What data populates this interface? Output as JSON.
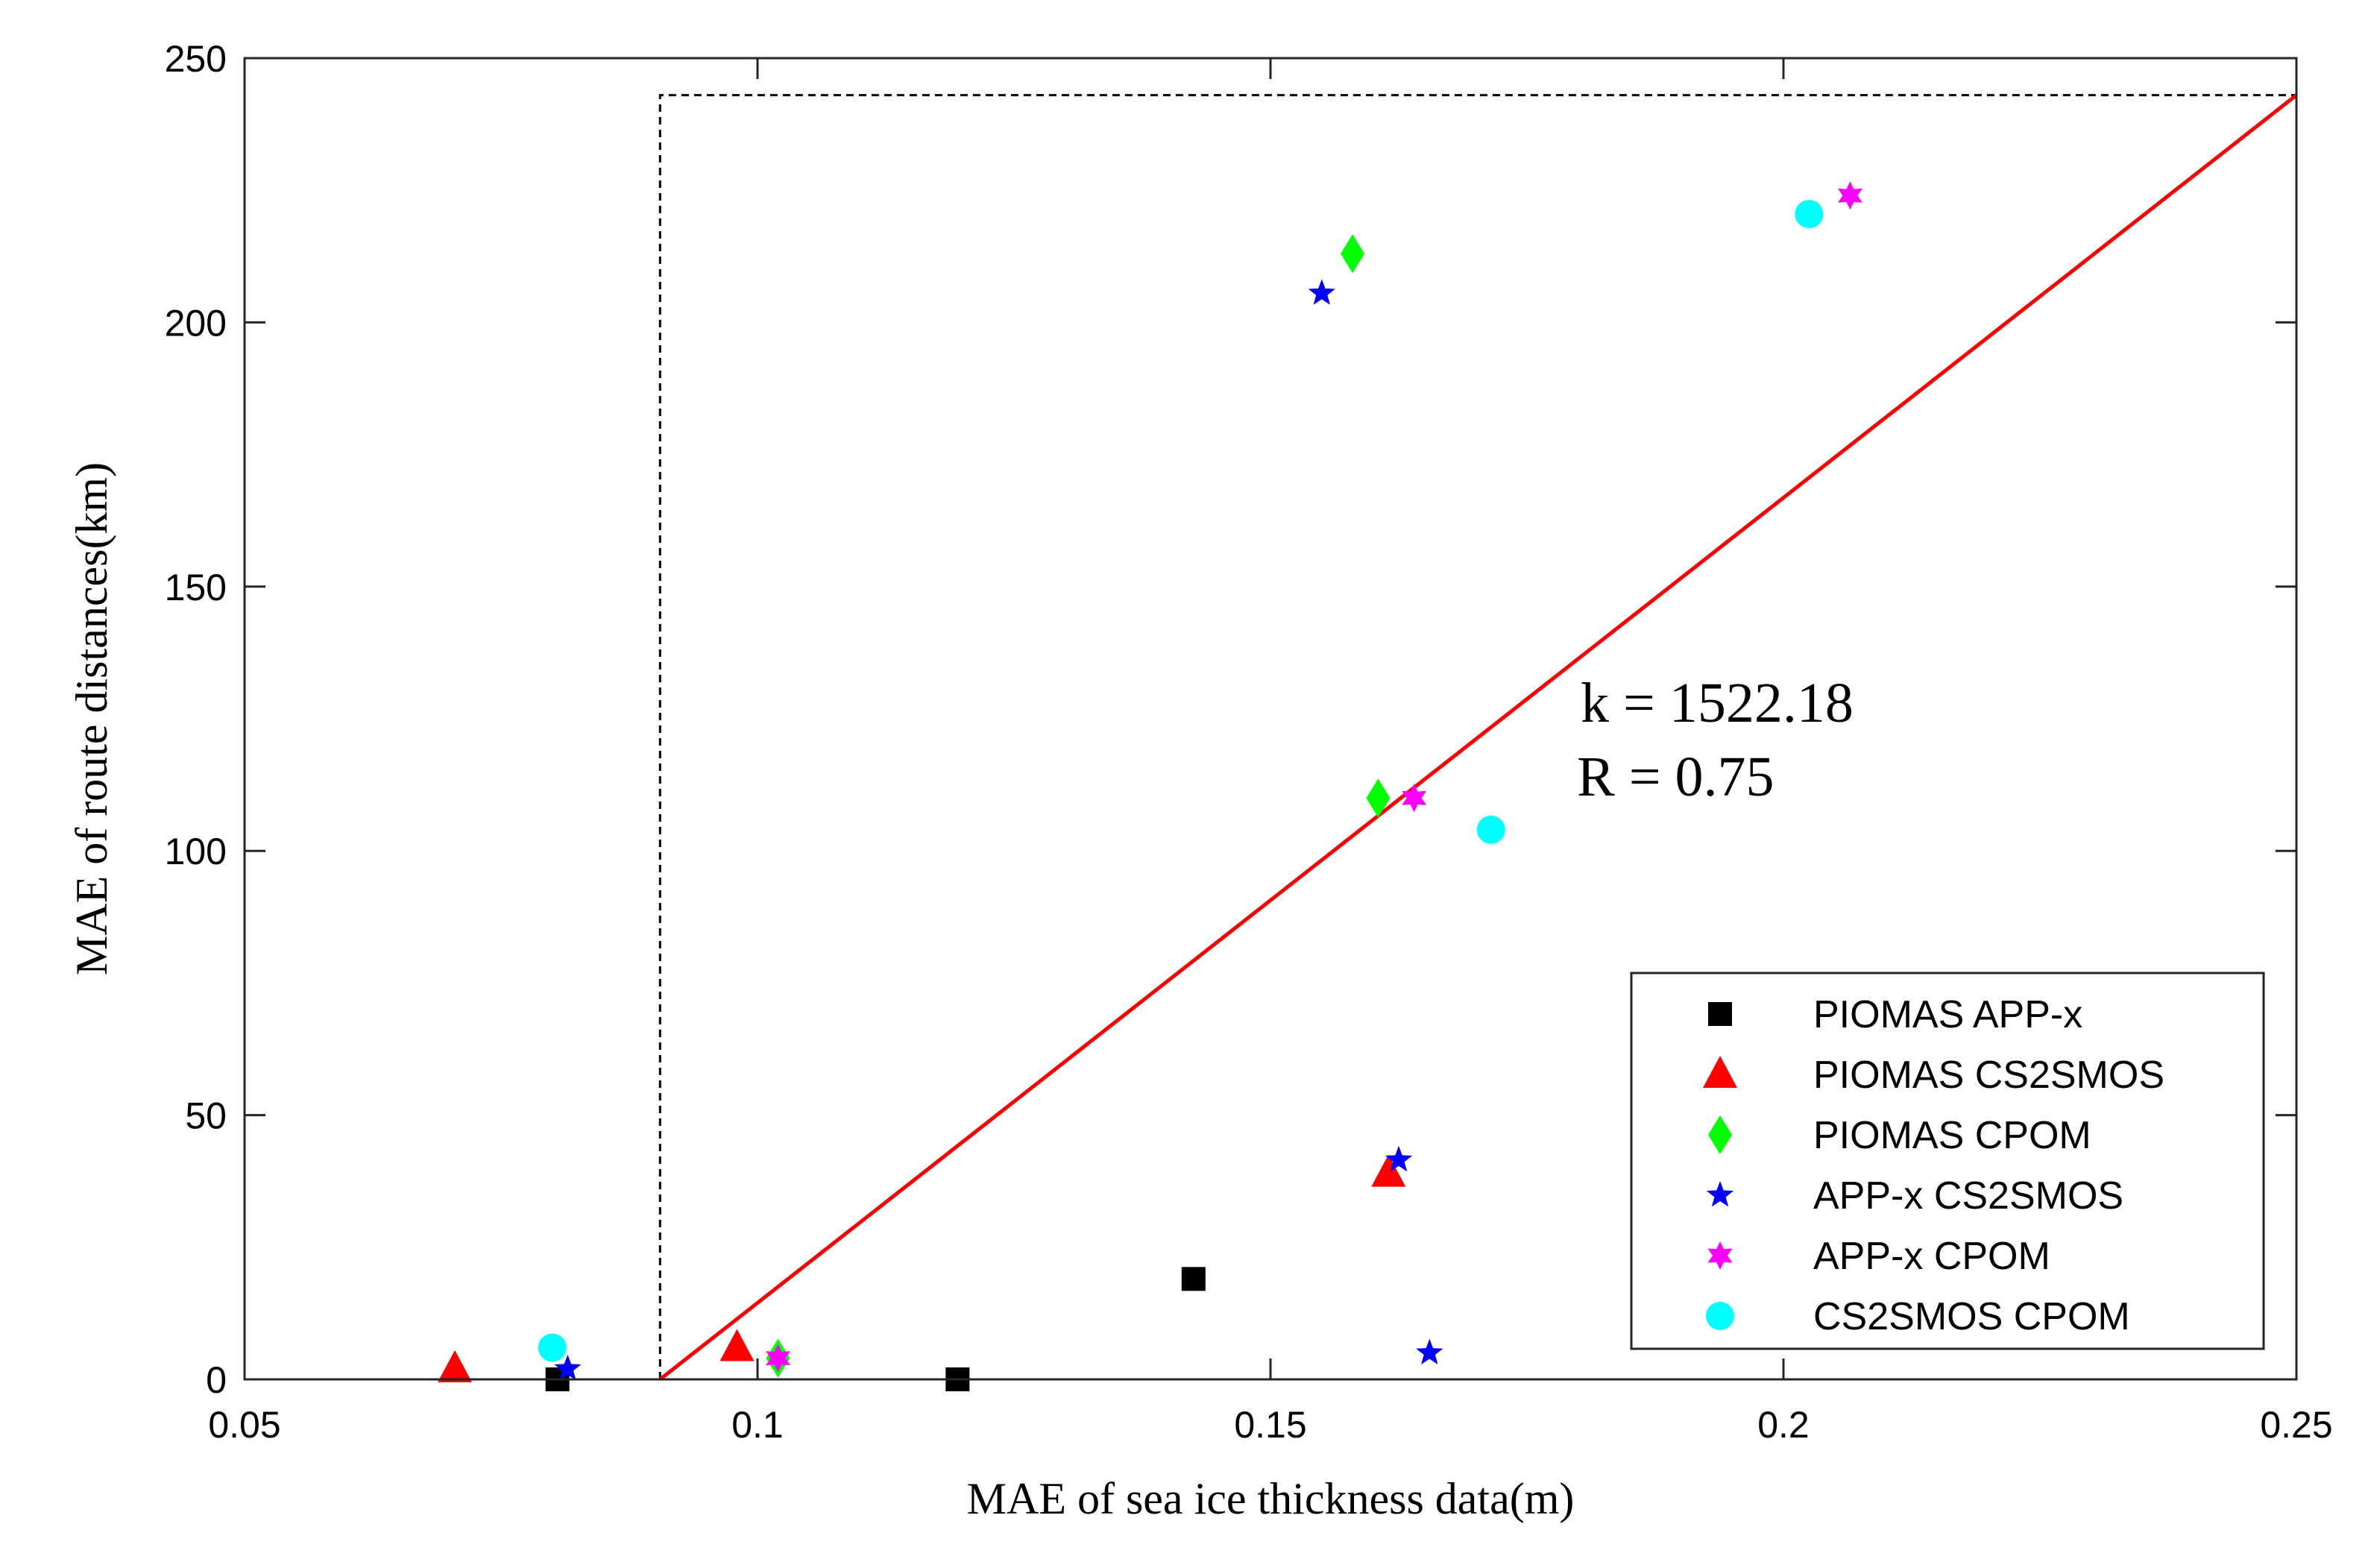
{
  "chart_data": {
    "type": "scatter",
    "xlabel": "MAE of sea ice thickness data(m)",
    "ylabel": "MAE of route distances(km)",
    "xlim": [
      0.05,
      0.25
    ],
    "ylim": [
      0,
      250
    ],
    "xticks": [
      0.05,
      0.1,
      0.15,
      0.2,
      0.25
    ],
    "xtick_labels": [
      "0.05",
      "0.1",
      "0.15",
      "0.2",
      "0.25"
    ],
    "yticks": [
      0,
      50,
      100,
      150,
      200,
      250
    ],
    "ytick_labels": [
      "0",
      "50",
      "100",
      "150",
      "200",
      "250"
    ],
    "grid": false,
    "legend_position": "bottom-right",
    "series": [
      {
        "name": "PIOMAS  APP-x",
        "marker": "square",
        "color": "#000000",
        "points": [
          [
            0.0805,
            0
          ],
          [
            0.1195,
            0
          ],
          [
            0.1425,
            19
          ]
        ]
      },
      {
        "name": "PIOMAS  CS2SMOS",
        "marker": "triangle",
        "color": "#ff0000",
        "points": [
          [
            0.0705,
            2
          ],
          [
            0.098,
            6
          ],
          [
            0.1615,
            39
          ]
        ]
      },
      {
        "name": "PIOMAS  CPOM",
        "marker": "diamond",
        "color": "#00ff00",
        "points": [
          [
            0.102,
            4
          ],
          [
            0.1605,
            110
          ],
          [
            0.158,
            213
          ]
        ]
      },
      {
        "name": "APP-x  CS2SMOS",
        "marker": "pentagram",
        "color": "#0000ff",
        "points": [
          [
            0.0815,
            2
          ],
          [
            0.1625,
            41.5
          ],
          [
            0.1655,
            5
          ],
          [
            0.155,
            205.5
          ]
        ]
      },
      {
        "name": "APP-x  CPOM",
        "marker": "hexagram",
        "color": "#ff00ff",
        "points": [
          [
            0.102,
            4
          ],
          [
            0.164,
            110
          ],
          [
            0.2065,
            224
          ]
        ]
      },
      {
        "name": "CS2SMOS  CPOM",
        "marker": "circle",
        "color": "#00ffff",
        "points": [
          [
            0.08,
            6
          ],
          [
            0.1715,
            104
          ],
          [
            0.2025,
            220.5
          ]
        ]
      }
    ],
    "fit_line": {
      "color": "#ff0000",
      "x": [
        0.0905,
        0.25
      ],
      "y": [
        0,
        243
      ]
    },
    "reference_box": {
      "style": "dashed",
      "color": "#000000",
      "x_left": 0.0905,
      "y_top": 243
    },
    "annotations": [
      "k = 1522.18",
      "R = 0.75"
    ]
  }
}
